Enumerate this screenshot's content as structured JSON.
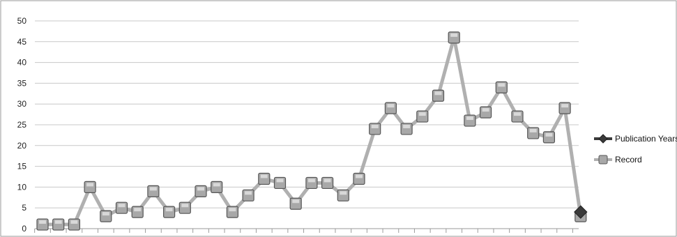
{
  "chart_data": {
    "type": "line",
    "title": "",
    "xlabel": "",
    "ylabel": "",
    "ylim": [
      0,
      50
    ],
    "yticks": [
      0,
      5,
      10,
      15,
      20,
      25,
      30,
      35,
      40,
      45,
      50
    ],
    "grid": true,
    "legend_position": "right",
    "series": [
      {
        "name": "Publication Years",
        "color": "#3a3a3a",
        "marker": "diamond",
        "values": [
          null,
          null,
          null,
          null,
          null,
          null,
          null,
          null,
          null,
          null,
          null,
          null,
          null,
          null,
          null,
          null,
          null,
          null,
          null,
          null,
          null,
          null,
          null,
          null,
          null,
          null,
          null,
          null,
          null,
          null,
          null,
          null,
          null,
          null,
          null,
          null,
          null,
          null,
          4
        ]
      },
      {
        "name": "Record",
        "color": "#b0b0b0",
        "marker": "square",
        "values": [
          1,
          1,
          1,
          10,
          3,
          5,
          4,
          9,
          4,
          5,
          9,
          10,
          4,
          8,
          12,
          11,
          6,
          11,
          11,
          8,
          12,
          24,
          29,
          24,
          27,
          32,
          46,
          26,
          28,
          34,
          27,
          23,
          22,
          29,
          3
        ]
      }
    ]
  }
}
